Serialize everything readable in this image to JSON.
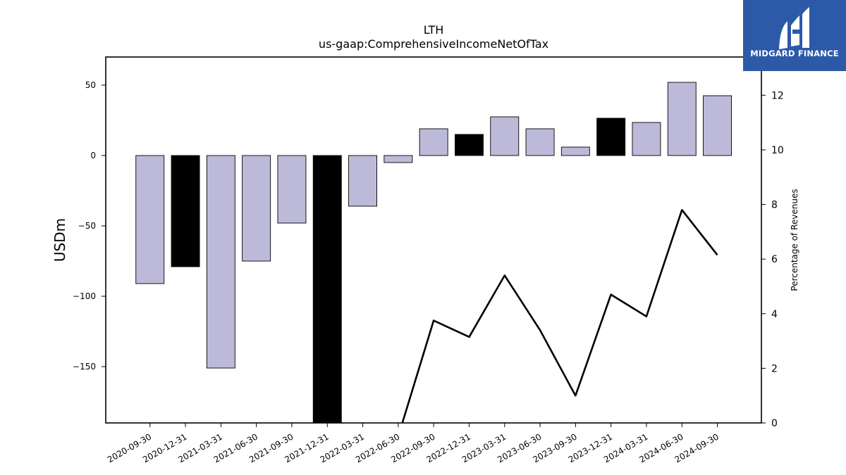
{
  "chart_data": {
    "type": "bar",
    "title": "LTH",
    "subtitle": "us-gaap:ComprehensiveIncomeNetOfTax",
    "ylabel": "USDm",
    "y2label": "Percentage of Revenues",
    "categories": [
      "2020-09-30",
      "2020-12-31",
      "2021-03-31",
      "2021-06-30",
      "2021-09-30",
      "2021-12-31",
      "2022-03-31",
      "2022-06-30",
      "2022-09-30",
      "2022-12-31",
      "2023-03-31",
      "2023-06-30",
      "2023-09-30",
      "2023-12-31",
      "2024-03-31",
      "2024-06-30",
      "2024-09-30"
    ],
    "series": [
      {
        "type": "bar",
        "values": [
          -91,
          -79,
          -151,
          -75,
          -48,
          -200,
          -36,
          -5,
          19,
          15,
          27.5,
          19,
          6,
          26.5,
          23.5,
          52,
          42.5
        ],
        "highlighted": [
          false,
          true,
          false,
          false,
          false,
          true,
          false,
          false,
          false,
          true,
          false,
          false,
          false,
          true,
          false,
          false,
          false
        ],
        "colors": {
          "normal": "#bdbad9",
          "highlight": "#000000"
        }
      },
      {
        "type": "line",
        "axis": "right",
        "values": [
          null,
          null,
          null,
          null,
          null,
          null,
          null,
          -0.5,
          3.75,
          3.15,
          5.4,
          3.4,
          1.0,
          4.7,
          3.9,
          7.8,
          6.15
        ],
        "color": "#000000"
      }
    ],
    "ylim": [
      -190,
      70
    ],
    "y2lim": [
      0,
      13.4
    ],
    "yticks": [
      50,
      0,
      -50,
      -100,
      -150
    ],
    "y2ticks": [
      0,
      2,
      4,
      6,
      8,
      10,
      12
    ],
    "grid": false
  },
  "logo": {
    "text": "MIDGARD FINANCE",
    "background": "#2d5aa8"
  }
}
